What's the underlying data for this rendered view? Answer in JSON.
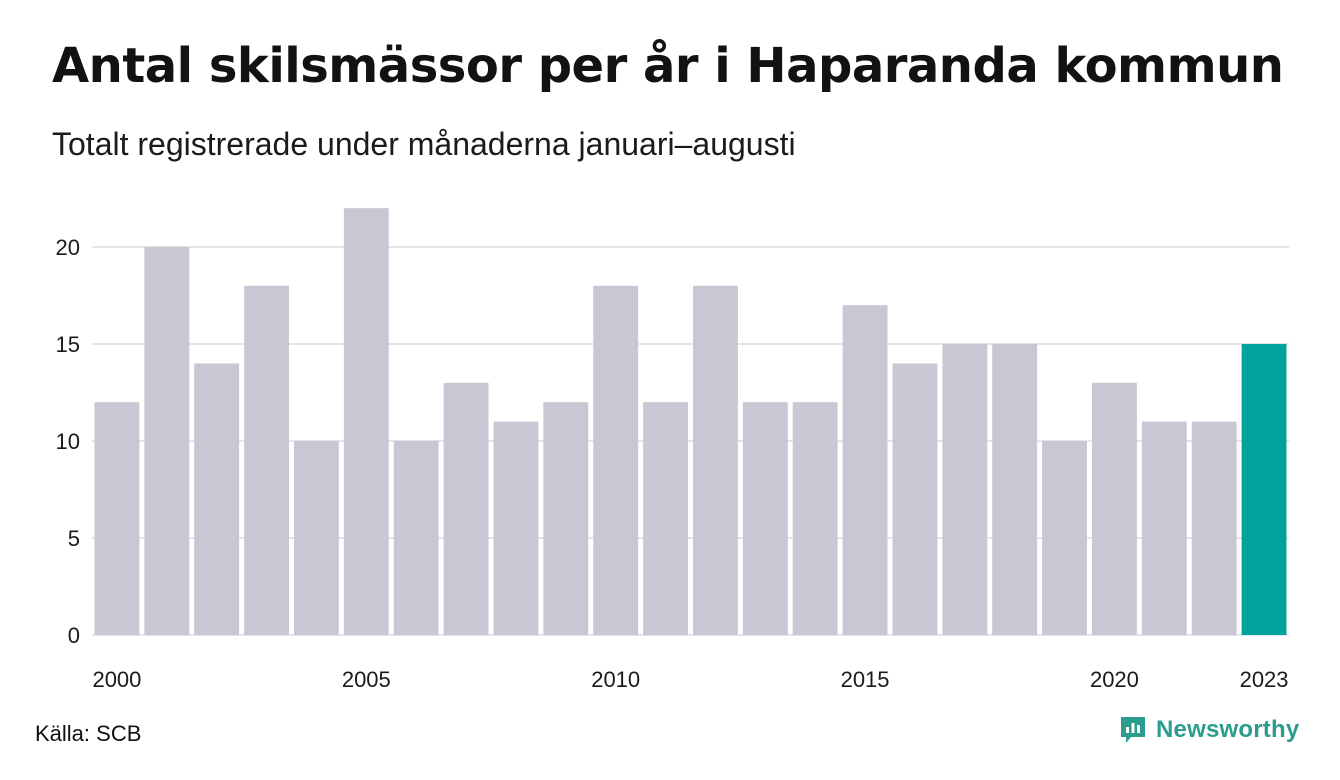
{
  "title": "Antal skilsmässor per år i Haparanda kommun",
  "subtitle": "Totalt registrerade under månaderna januari–augusti",
  "source": "Källa: SCB",
  "brand": "Newsworthy",
  "brand_icon": "newsworthy-logo-icon",
  "colors": {
    "bar": "#c8c7d3",
    "highlight": "#00a39b",
    "grid": "#e5e5e8",
    "brand": "#2a9d8f"
  },
  "chart_data": {
    "type": "bar",
    "title": "Antal skilsmässor per år i Haparanda kommun",
    "subtitle": "Totalt registrerade under månaderna januari–augusti",
    "xlabel": "",
    "ylabel": "",
    "categories": [
      "2000",
      "2001",
      "2002",
      "2003",
      "2004",
      "2005",
      "2006",
      "2007",
      "2008",
      "2009",
      "2010",
      "2011",
      "2012",
      "2013",
      "2014",
      "2015",
      "2016",
      "2017",
      "2018",
      "2019",
      "2020",
      "2021",
      "2022",
      "2023"
    ],
    "values": [
      12,
      20,
      14,
      18,
      10,
      22,
      10,
      13,
      11,
      12,
      18,
      12,
      18,
      12,
      12,
      17,
      14,
      15,
      15,
      10,
      13,
      11,
      11,
      15
    ],
    "highlight_category": "2023",
    "ylim": [
      0,
      22
    ],
    "yticks": [
      0,
      5,
      10,
      15,
      20
    ],
    "xticks": [
      "2000",
      "2005",
      "2010",
      "2015",
      "2020",
      "2023"
    ],
    "grid": true,
    "legend": "none"
  }
}
